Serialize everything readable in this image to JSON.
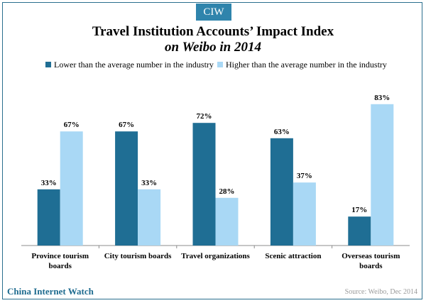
{
  "badge": "CIW",
  "footer": {
    "brand": "China Internet Watch",
    "source": "Source: Weibo, Dec 2014"
  },
  "colors": {
    "lower": "#1f6e94",
    "higher": "#a9d8f5",
    "accent": "#2f84ac"
  },
  "chart_data": {
    "type": "bar",
    "title": "Travel Institution Accounts’ Impact Index",
    "subtitle": "on Weibo in 2014",
    "categories": [
      [
        "Province tourism",
        "boards"
      ],
      [
        "City tourism boards"
      ],
      [
        "Travel organizations"
      ],
      [
        "Scenic attraction"
      ],
      [
        "Overseas tourism",
        "boards"
      ]
    ],
    "series": [
      {
        "name": "Lower than the average number in the industry",
        "values": [
          33,
          67,
          72,
          63,
          17
        ]
      },
      {
        "name": "Higher than the average number in the industry",
        "values": [
          67,
          33,
          28,
          37,
          83
        ]
      }
    ],
    "value_suffix": "%",
    "ylim": [
      0,
      100
    ],
    "legend": "top",
    "grid": false
  }
}
